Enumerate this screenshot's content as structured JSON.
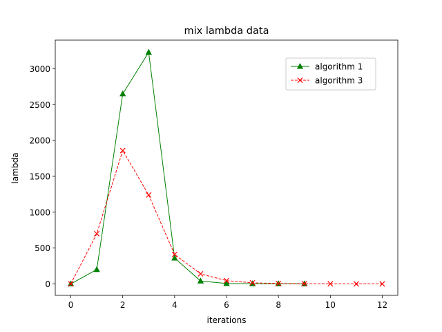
{
  "chart_data": {
    "type": "line",
    "title": "mix lambda data",
    "xlabel": "iterations",
    "ylabel": "lambda",
    "xlim": [
      -0.6,
      12.6
    ],
    "ylim": [
      -160,
      3400
    ],
    "xticks": [
      0,
      2,
      4,
      6,
      8,
      10,
      12
    ],
    "yticks": [
      0,
      500,
      1000,
      1500,
      2000,
      2500,
      3000
    ],
    "grid": false,
    "legend_position": "upper right",
    "series": [
      {
        "name": "algorithm 1",
        "color": "#008000",
        "line_style": "solid",
        "marker": "triangle-up",
        "x": [
          0,
          1,
          2,
          3,
          4,
          5,
          6,
          7,
          8,
          9
        ],
        "y": [
          0,
          200,
          2650,
          3230,
          360,
          40,
          5,
          2,
          1,
          0
        ]
      },
      {
        "name": "algorithm 3",
        "color": "#ff0000",
        "line_style": "dashed",
        "marker": "x",
        "x": [
          0,
          1,
          2,
          3,
          4,
          5,
          6,
          7,
          8,
          9,
          10,
          11,
          12
        ],
        "y": [
          0,
          700,
          1860,
          1240,
          410,
          140,
          45,
          15,
          5,
          2,
          1,
          0,
          0
        ]
      }
    ]
  }
}
